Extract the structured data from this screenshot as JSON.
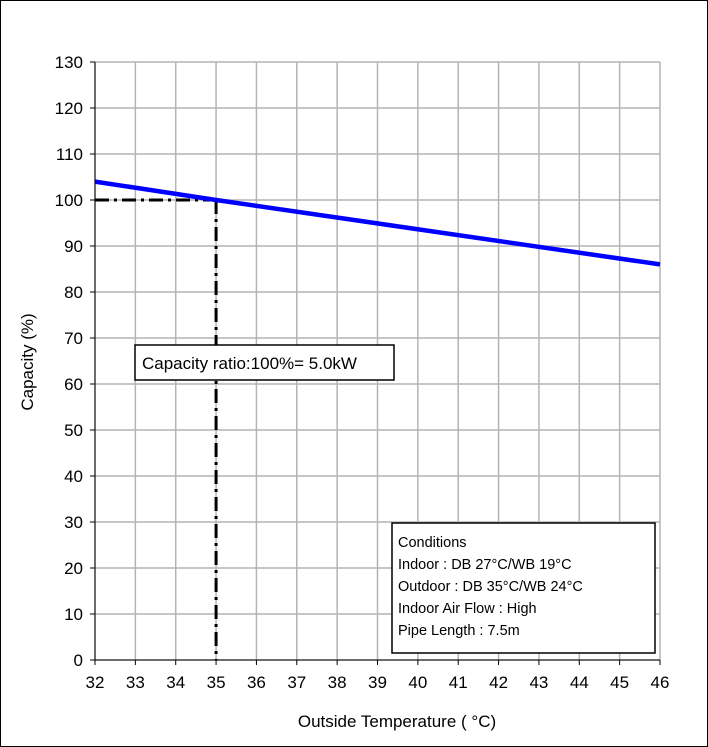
{
  "chart_data": {
    "type": "line",
    "title": "",
    "xlabel": "Outside Temperature ( °C)",
    "ylabel": "Capacity (%)",
    "xlim": [
      32,
      46
    ],
    "ylim": [
      0,
      130
    ],
    "x_ticks": [
      32,
      33,
      34,
      35,
      36,
      37,
      38,
      39,
      40,
      41,
      42,
      43,
      44,
      45,
      46
    ],
    "y_ticks": [
      0,
      10,
      20,
      30,
      40,
      50,
      60,
      70,
      80,
      90,
      100,
      110,
      120,
      130
    ],
    "grid": true,
    "series": [
      {
        "color": "#0000ff",
        "x": [
          32,
          35,
          46
        ],
        "y": [
          104,
          100,
          86
        ]
      }
    ],
    "reference_lines": {
      "style": "dash-dot",
      "color": "#000000",
      "x": 35,
      "y": 100
    },
    "annotations": {
      "capacity_ratio": "Capacity ratio:100%= 5.0kW",
      "conditions": [
        "Conditions",
        "Indoor : DB 27°C/WB 19°C",
        "Outdoor : DB 35°C/WB 24°C",
        "Indoor Air Flow : High",
        "Pipe Length : 7.5m"
      ]
    }
  }
}
